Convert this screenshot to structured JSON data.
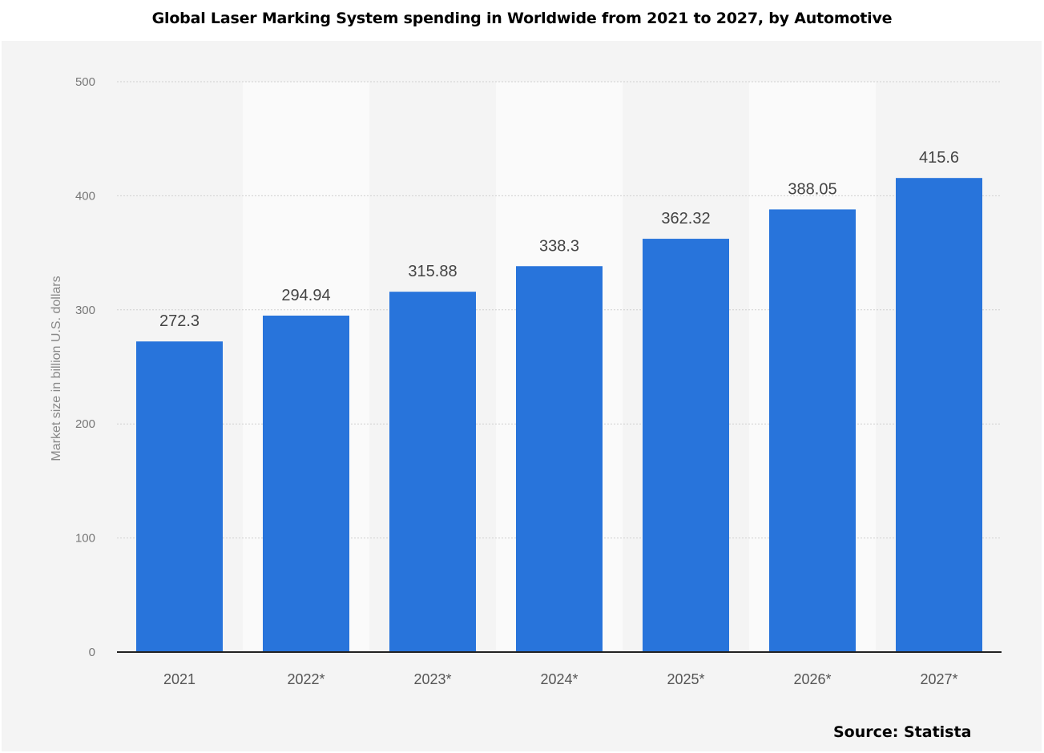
{
  "title": "Global Laser Marking System spending in Worldwide from 2021 to 2027, by Automotive",
  "source": "Source: Statista",
  "colors": {
    "bar": "#2874db",
    "panel": "#f4f4f4",
    "band": "#fafafa",
    "grid": "#cfcfcf",
    "axis_text": "#777777",
    "value_text": "#444444"
  },
  "chart_data": {
    "type": "bar",
    "categories": [
      "2021",
      "2022*",
      "2023*",
      "2024*",
      "2025*",
      "2026*",
      "2027*"
    ],
    "values": [
      272.3,
      294.94,
      315.88,
      338.3,
      362.32,
      388.05,
      415.6
    ],
    "value_labels": [
      "272.3",
      "294.94",
      "315.88",
      "338.3",
      "362.32",
      "388.05",
      "415.6"
    ],
    "title": "Global Laser Marking System spending in Worldwide from 2021 to 2027, by Automotive",
    "xlabel": "",
    "ylabel": "Market size in billion U.S. dollars",
    "ylim": [
      0,
      500
    ],
    "yticks": [
      0,
      100,
      200,
      300,
      400,
      500
    ],
    "grid": true,
    "legend": "none"
  }
}
